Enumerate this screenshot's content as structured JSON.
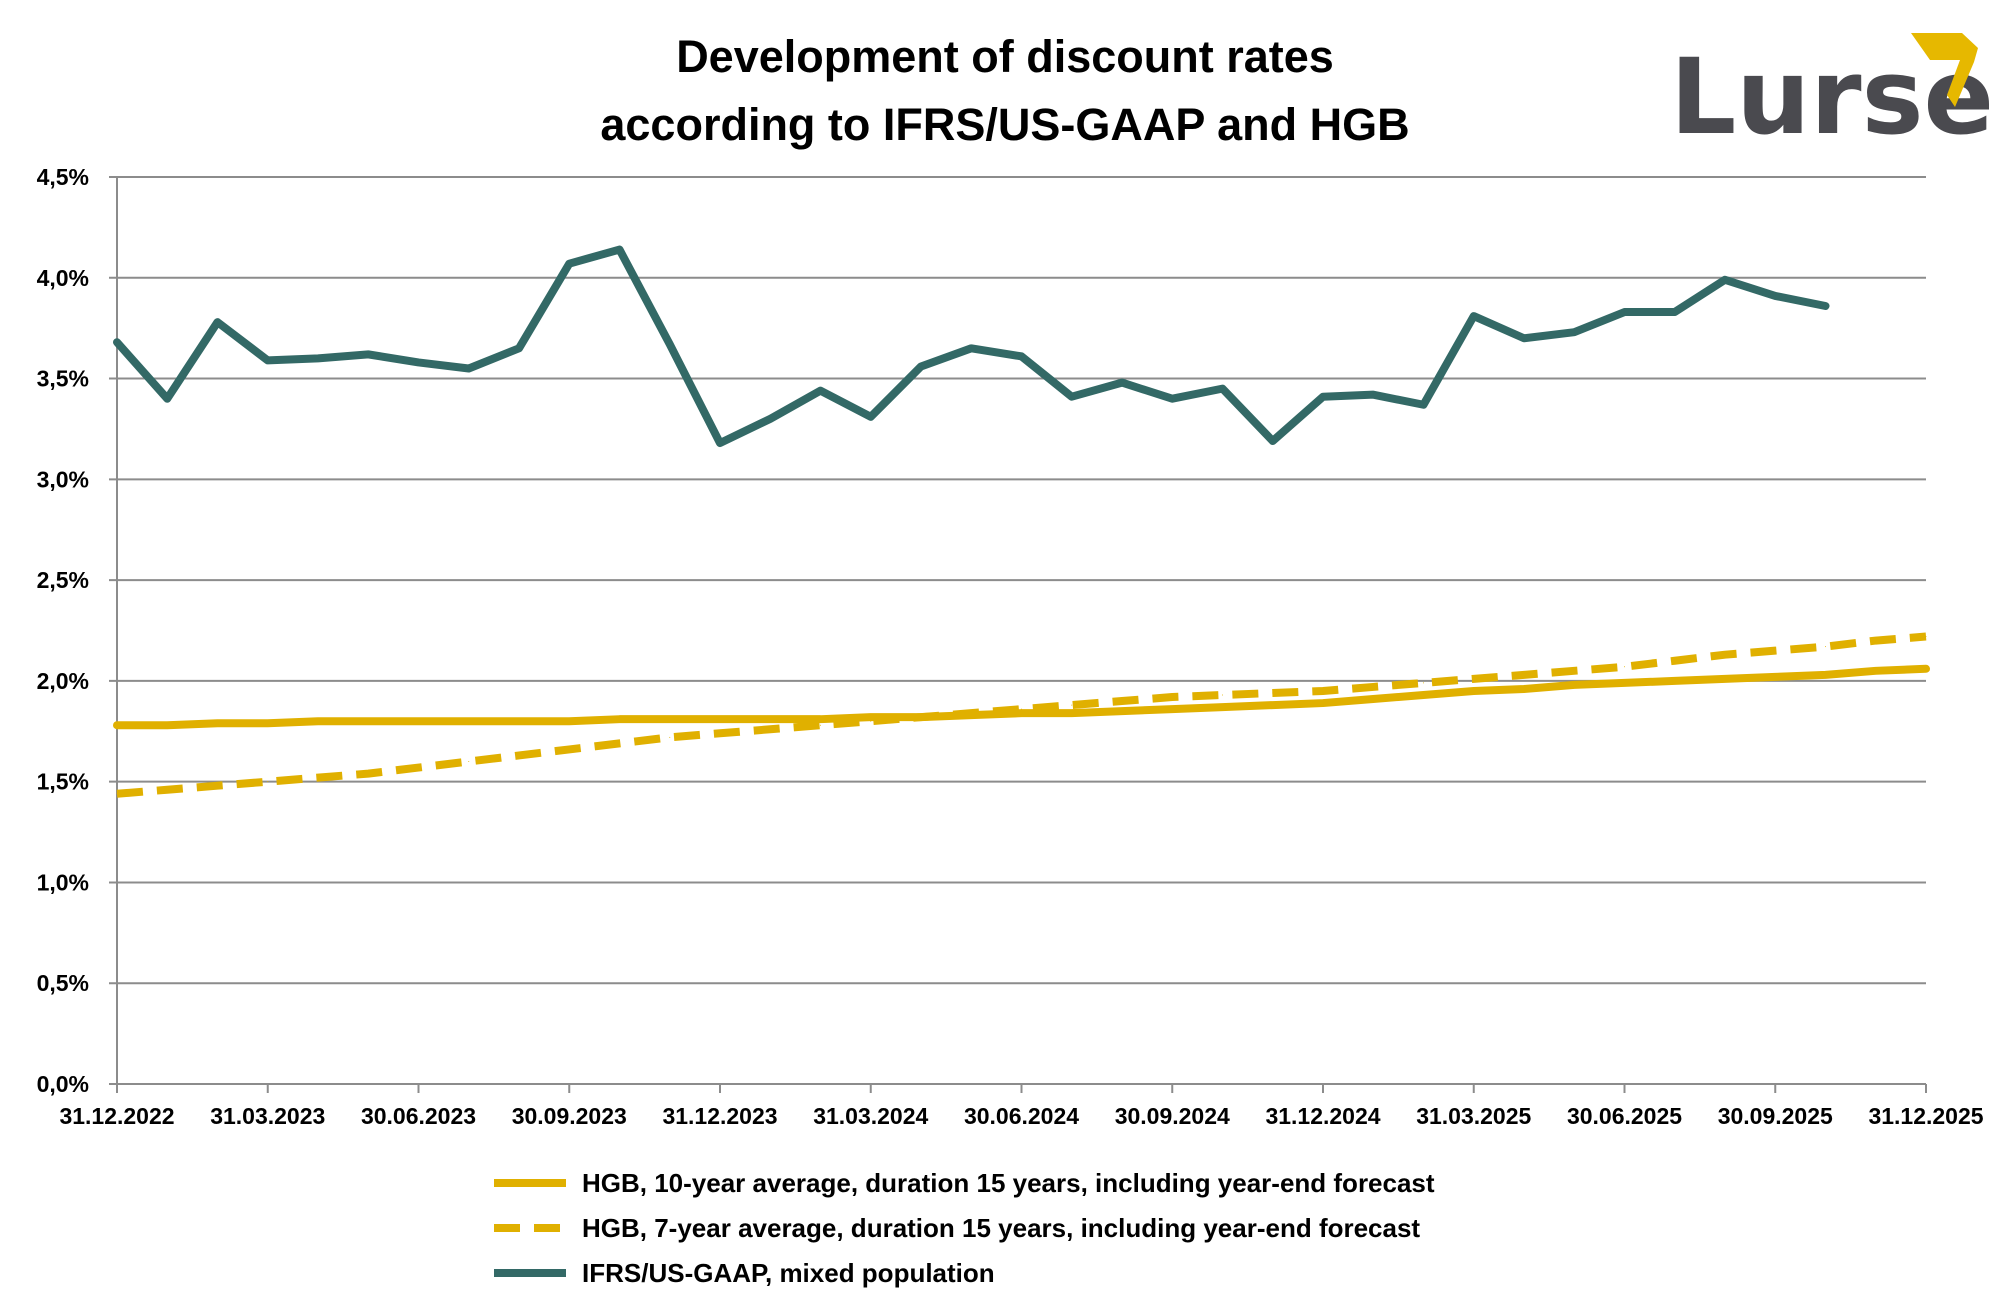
{
  "logo": {
    "text": "Lurse",
    "text_color": "#4a4a4f",
    "accent_color": "#e6b800"
  },
  "chart_data": {
    "type": "line",
    "title": [
      "Development of discount rates",
      "according to IFRS/US-GAAP and HGB"
    ],
    "xlabel": "",
    "ylabel": "",
    "x_tick_labels": [
      "31.12.2022",
      "31.03.2023",
      "30.06.2023",
      "30.09.2023",
      "31.12.2023",
      "31.03.2024",
      "30.06.2024",
      "30.09.2024",
      "31.12.2024",
      "31.03.2025",
      "30.06.2025",
      "30.09.2025",
      "31.12.2025"
    ],
    "x_axis": "monthly, 31.12.2022 to 31.12.2025",
    "y_tick_labels": [
      "0,0%",
      "0,5%",
      "1,0%",
      "1,5%",
      "2,0%",
      "2,5%",
      "3,0%",
      "3,5%",
      "4,0%",
      "4,5%"
    ],
    "ylim": [
      0,
      4.5
    ],
    "y_unit": "%",
    "grid": "horizontal",
    "legend_position": "bottom",
    "series": [
      {
        "name": "HGB, 10-year average, duration 15 years, including year-end forecast",
        "color": "#e0b000",
        "style": "solid",
        "values": [
          1.78,
          1.78,
          1.79,
          1.79,
          1.8,
          1.8,
          1.8,
          1.8,
          1.8,
          1.8,
          1.81,
          1.81,
          1.81,
          1.81,
          1.81,
          1.82,
          1.82,
          1.83,
          1.84,
          1.84,
          1.85,
          1.86,
          1.87,
          1.88,
          1.89,
          1.91,
          1.93,
          1.95,
          1.96,
          1.98,
          1.99,
          2.0,
          2.01,
          2.02,
          2.03,
          2.05,
          2.06
        ]
      },
      {
        "name": "HGB, 7-year average, duration 15 years, including year-end forecast",
        "color": "#e0b000",
        "style": "dashed",
        "values": [
          1.44,
          1.46,
          1.48,
          1.5,
          1.52,
          1.54,
          1.57,
          1.6,
          1.63,
          1.66,
          1.69,
          1.72,
          1.74,
          1.76,
          1.78,
          1.8,
          1.82,
          1.84,
          1.86,
          1.88,
          1.9,
          1.92,
          1.93,
          1.94,
          1.95,
          1.97,
          1.99,
          2.01,
          2.03,
          2.05,
          2.07,
          2.1,
          2.13,
          2.15,
          2.17,
          2.2,
          2.22
        ]
      },
      {
        "name": "IFRS/US-GAAP, mixed population",
        "color": "#336966",
        "style": "solid",
        "values": [
          3.68,
          3.4,
          3.78,
          3.59,
          3.6,
          3.62,
          3.58,
          3.55,
          3.65,
          4.07,
          4.14,
          3.67,
          3.18,
          3.3,
          3.44,
          3.31,
          3.56,
          3.65,
          3.61,
          3.41,
          3.48,
          3.4,
          3.45,
          3.19,
          3.41,
          3.42,
          3.37,
          3.81,
          3.7,
          3.73,
          3.83,
          3.83,
          3.99,
          3.91,
          3.86
        ]
      }
    ]
  }
}
